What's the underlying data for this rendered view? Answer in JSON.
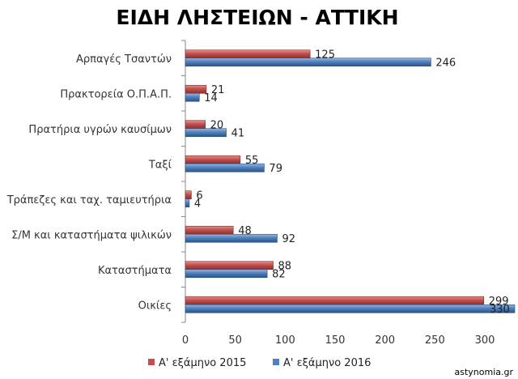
{
  "chart_data": {
    "type": "bar",
    "orientation": "horizontal",
    "title": "ΕΙΔΗ ΛΗΣΤΕΙΩΝ - ΑΤΤΙΚΗ",
    "categories": [
      "Αρπαγές Τσαντών",
      "Πρακτορεία Ο.Π.Α.Π.",
      "Πρατήρια υγρών καυσίμων",
      "Ταξί",
      "Τράπεζες και ταχ. ταμιευτήρια",
      "Σ/Μ και καταστήματα ψιλικών",
      "Καταστήματα",
      "Οικίες"
    ],
    "series": [
      {
        "name": "Α' εξάμηνο 2015",
        "color": "#c0504d",
        "values": [
          125,
          21,
          20,
          55,
          6,
          48,
          88,
          299
        ]
      },
      {
        "name": "Α' εξάμηνο 2016",
        "color": "#4f81bd",
        "values": [
          246,
          14,
          41,
          79,
          4,
          92,
          82,
          330
        ]
      }
    ],
    "xticks": [
      0,
      50,
      100,
      150,
      200,
      250,
      300
    ],
    "xlim": [
      0,
      330
    ],
    "grid": false,
    "legend": "bottom"
  },
  "credit": "astynomia.gr"
}
